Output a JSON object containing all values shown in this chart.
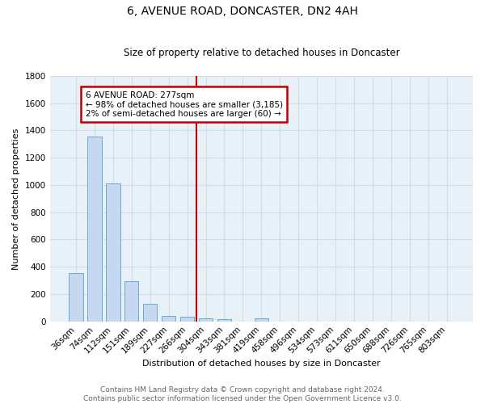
{
  "title": "6, AVENUE ROAD, DONCASTER, DN2 4AH",
  "subtitle": "Size of property relative to detached houses in Doncaster",
  "xlabel": "Distribution of detached houses by size in Doncaster",
  "ylabel": "Number of detached properties",
  "footer_line1": "Contains HM Land Registry data © Crown copyright and database right 2024.",
  "footer_line2": "Contains public sector information licensed under the Open Government Licence v3.0.",
  "bar_labels": [
    "36sqm",
    "74sqm",
    "112sqm",
    "151sqm",
    "189sqm",
    "227sqm",
    "266sqm",
    "304sqm",
    "343sqm",
    "381sqm",
    "419sqm",
    "458sqm",
    "496sqm",
    "534sqm",
    "573sqm",
    "611sqm",
    "650sqm",
    "688sqm",
    "726sqm",
    "765sqm",
    "803sqm"
  ],
  "bar_values": [
    355,
    1355,
    1010,
    295,
    130,
    42,
    36,
    22,
    17,
    0,
    20,
    0,
    0,
    0,
    0,
    0,
    0,
    0,
    0,
    0,
    0
  ],
  "bar_color": "#c5d8ef",
  "bar_edge_color": "#6aaad4",
  "background_color": "#e8f0f8",
  "grid_color": "#d0dce8",
  "vline_x": 6.5,
  "vline_color": "#c00000",
  "annotation_text": "6 AVENUE ROAD: 277sqm\n← 98% of detached houses are smaller (3,185)\n2% of semi-detached houses are larger (60) →",
  "annotation_box_color": "#ffffff",
  "annotation_box_edge": "#c00000",
  "ylim": [
    0,
    1800
  ],
  "yticks": [
    0,
    200,
    400,
    600,
    800,
    1000,
    1200,
    1400,
    1600,
    1800
  ],
  "title_fontsize": 10,
  "subtitle_fontsize": 8.5,
  "ylabel_fontsize": 8,
  "xlabel_fontsize": 8,
  "footer_fontsize": 6.5,
  "tick_fontsize": 7.5
}
